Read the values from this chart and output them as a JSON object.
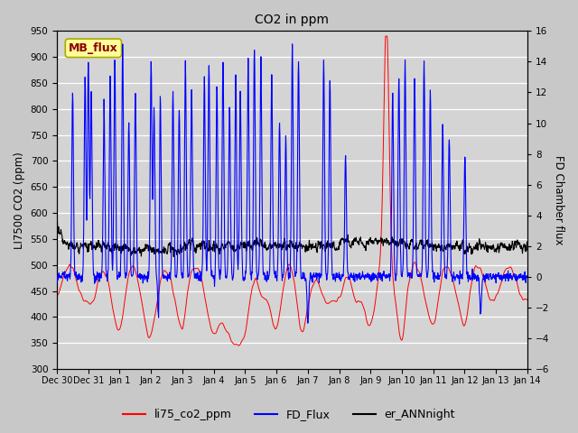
{
  "title": "CO2 in ppm",
  "ylabel_left": "LI7500 CO2 (ppm)",
  "ylabel_right": "FD Chamber flux",
  "ylim_left": [
    300,
    950
  ],
  "ylim_right": [
    -6,
    16
  ],
  "yticks_left": [
    300,
    350,
    400,
    450,
    500,
    550,
    600,
    650,
    700,
    750,
    800,
    850,
    900,
    950
  ],
  "yticks_right": [
    -6,
    -4,
    -2,
    0,
    2,
    4,
    6,
    8,
    10,
    12,
    14,
    16
  ],
  "bg_color": "#c8c8c8",
  "plot_bg_color": "#d4d4d4",
  "grid_color": "#ffffff",
  "line_red": "#ff0000",
  "line_blue": "#0000ff",
  "line_black": "#000000",
  "legend_labels": [
    "li75_co2_ppm",
    "FD_Flux",
    "er_ANNnight"
  ],
  "mb_flux_box_color": "#ffff99",
  "mb_flux_text_color": "#8b0000",
  "tick_labels": [
    "Dec 30",
    "Dec 31",
    "Jan 1",
    "Jan 2",
    "Jan 3",
    "Jan 4",
    "Jan 5",
    "Jan 6",
    "Jan 7",
    "Jan 8",
    "Jan 9",
    "Jan 10",
    "Jan 11",
    "Jan 12",
    "Jan 13",
    "Jan 14"
  ],
  "n_days": 15,
  "pts_per_day": 96,
  "seed": 7
}
